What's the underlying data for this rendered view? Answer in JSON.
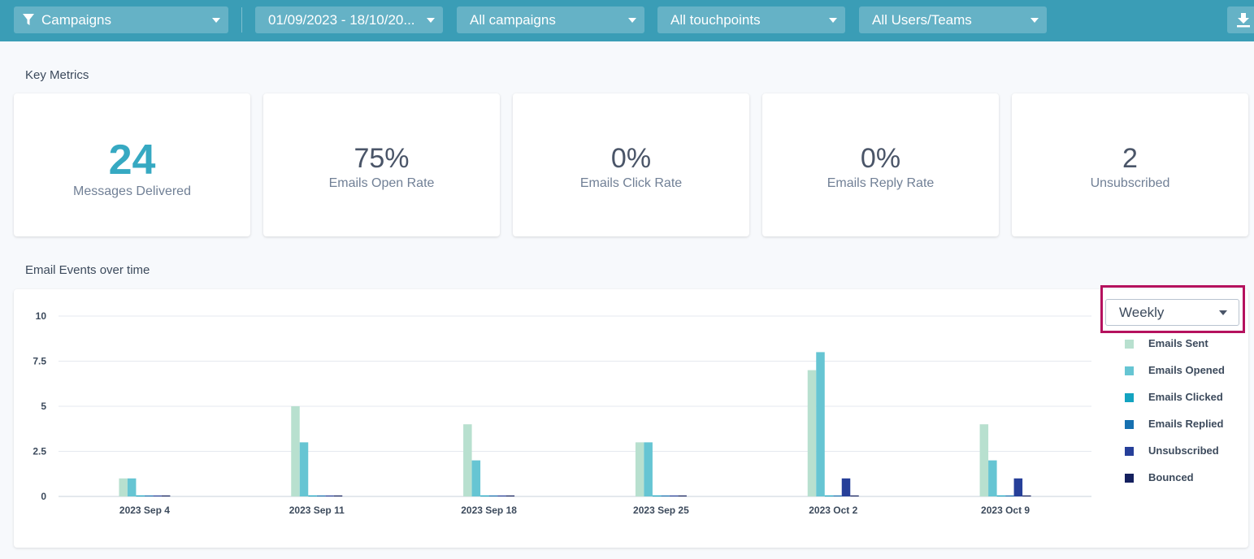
{
  "filters": {
    "campaign_type": "Campaigns",
    "date_range": "01/09/2023 - 18/10/20...",
    "campaigns": "All campaigns",
    "touchpoints": "All touchpoints",
    "users": "All Users/Teams"
  },
  "key_metrics": {
    "title": "Key Metrics",
    "cards": [
      {
        "value": "24",
        "label": "Messages Delivered"
      },
      {
        "value": "75%",
        "label": "Emails Open Rate"
      },
      {
        "value": "0%",
        "label": "Emails Click Rate"
      },
      {
        "value": "0%",
        "label": "Emails Reply Rate"
      },
      {
        "value": "2",
        "label": "Unsubscribed"
      }
    ]
  },
  "email_events": {
    "title": "Email Events over time",
    "interval_select": "Weekly"
  },
  "colors": {
    "topbar": "#3a9db6",
    "primary_metric": "#36a9c2",
    "highlight": "#b5125e"
  },
  "chart_data": {
    "type": "bar",
    "categories": [
      "2023 Sep 4",
      "2023 Sep 11",
      "2023 Sep 18",
      "2023 Sep 25",
      "2023 Oct 2",
      "2023 Oct 9"
    ],
    "ylim": [
      0,
      10
    ],
    "yticks": [
      "0",
      "2.5",
      "5",
      "7.5",
      "10"
    ],
    "ytick_values": [
      0,
      2.5,
      5,
      7.5,
      10
    ],
    "grid": true,
    "legend_position": "right",
    "series": [
      {
        "name": "Emails Sent",
        "color": "#b8e0cf",
        "values": [
          1,
          5,
          4,
          3,
          7,
          4
        ]
      },
      {
        "name": "Emails Opened",
        "color": "#66c5d3",
        "values": [
          1,
          3,
          2,
          3,
          8,
          2
        ]
      },
      {
        "name": "Emails Clicked",
        "color": "#13a3c0",
        "values": [
          0,
          0,
          0,
          0,
          0,
          0
        ]
      },
      {
        "name": "Emails Replied",
        "color": "#1670b0",
        "values": [
          0,
          0,
          0,
          0,
          0,
          0
        ]
      },
      {
        "name": "Unsubscribed",
        "color": "#263f99",
        "values": [
          0,
          0,
          0,
          0,
          1,
          1
        ]
      },
      {
        "name": "Bounced",
        "color": "#14205e",
        "values": [
          0,
          0,
          0,
          0,
          0,
          0
        ]
      }
    ]
  }
}
